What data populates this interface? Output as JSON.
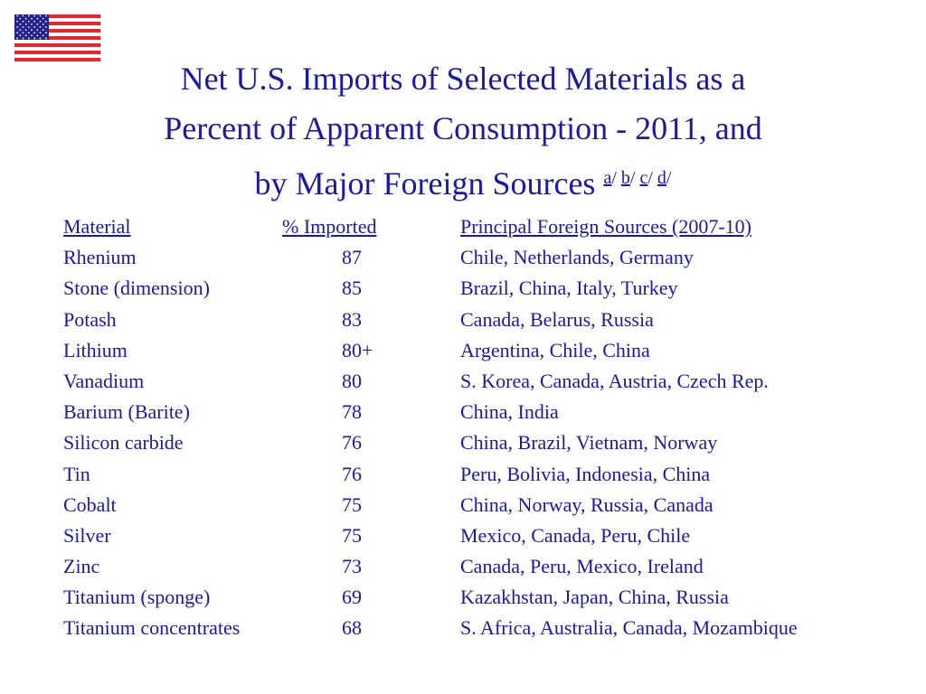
{
  "title": {
    "line1": "Net U.S. Imports of Selected Materials as a",
    "line2": "Percent of Apparent Consumption - 2011, and",
    "line3": "by Major Foreign Sources",
    "footnotes": [
      "a",
      "b",
      "c",
      "d"
    ],
    "footnote_separator": "/"
  },
  "flag": {
    "icon": "us-flag-icon",
    "stripe_red": "#e8262b",
    "canton_blue": "#22238d"
  },
  "colors": {
    "text": "#1a1aa3"
  },
  "table": {
    "headers": [
      "Material",
      "% Imported",
      "Principal Foreign Sources (2007-10)"
    ],
    "rows": [
      [
        "Rhenium",
        "87",
        "Chile, Netherlands, Germany"
      ],
      [
        "Stone (dimension)",
        "85",
        "Brazil, China, Italy, Turkey"
      ],
      [
        "Potash",
        "83",
        "Canada, Belarus, Russia"
      ],
      [
        "Lithium",
        "80+",
        "Argentina, Chile, China"
      ],
      [
        "Vanadium",
        "80",
        "S. Korea, Canada, Austria, Czech Rep."
      ],
      [
        "Barium (Barite)",
        "78",
        "China, India"
      ],
      [
        "Silicon carbide",
        "76",
        "China, Brazil, Vietnam, Norway"
      ],
      [
        "Tin",
        "76",
        "Peru, Bolivia, Indonesia, China"
      ],
      [
        "Cobalt",
        "75",
        "China, Norway, Russia, Canada"
      ],
      [
        "Silver",
        "75",
        "Mexico, Canada, Peru, Chile"
      ],
      [
        "Zinc",
        "73",
        "Canada, Peru, Mexico, Ireland"
      ],
      [
        "Titanium (sponge)",
        "69",
        "Kazakhstan, Japan, China, Russia"
      ],
      [
        "Titanium concentrates",
        "68",
        "S. Africa, Australia, Canada, Mozambique"
      ]
    ]
  }
}
